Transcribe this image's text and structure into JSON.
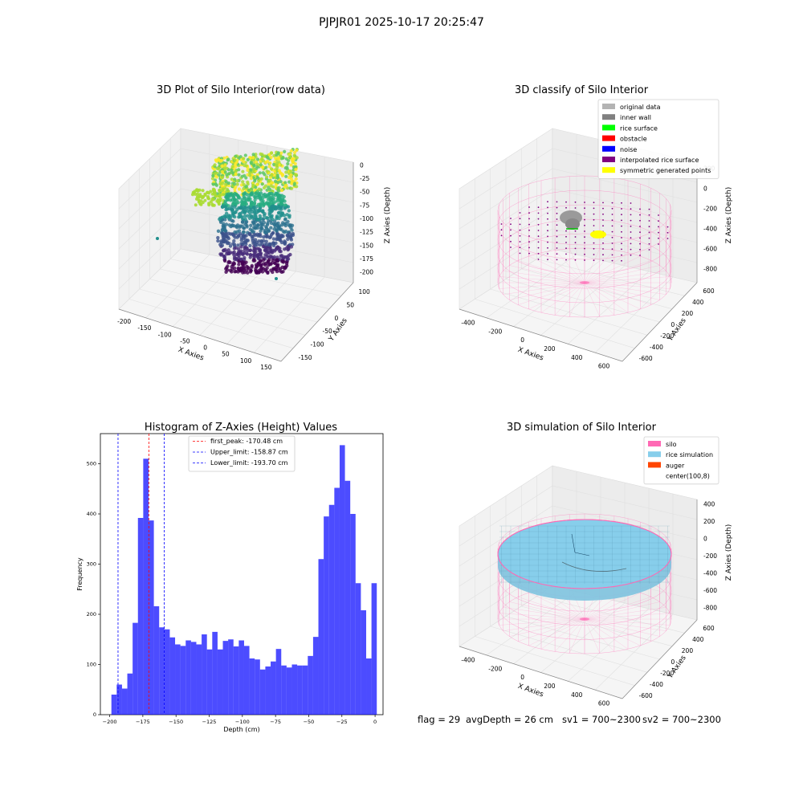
{
  "suptitle": "PJPJR01 2025-10-17 20:25:47",
  "panels": {
    "raw": {
      "title": "3D Plot of Silo Interior(row data)",
      "xlabel": "X Axies",
      "ylabel": "Y Axies",
      "zlabel": "Z Axies (Depth)",
      "xticks": [
        "-200",
        "-150",
        "-100",
        "-50",
        "0",
        "50",
        "100",
        "150"
      ],
      "yticks": [
        "100",
        "50",
        "0",
        "-50",
        "-100",
        "-150"
      ],
      "zticks": [
        "0",
        "-25",
        "-50",
        "-75",
        "-100",
        "-125",
        "-150",
        "-175",
        "-200"
      ]
    },
    "classify": {
      "title": "3D classify of Silo Interior",
      "xlabel": "X Axies",
      "ylabel": "Y Axies",
      "zlabel": "Z Axies (Depth)",
      "xticks": [
        "-400",
        "-200",
        "0",
        "200",
        "400",
        "600"
      ],
      "yticks": [
        "600",
        "400",
        "200",
        "0",
        "-200",
        "-400",
        "-600"
      ],
      "zticks": [
        "200",
        "0",
        "-200",
        "-400",
        "-600",
        "-800"
      ],
      "legend": [
        {
          "label": "original data",
          "color": "#b3b3b3"
        },
        {
          "label": "inner wall",
          "color": "#808080"
        },
        {
          "label": "rice surface",
          "color": "#00ff00"
        },
        {
          "label": "obstacle",
          "color": "#ff0000"
        },
        {
          "label": "noise",
          "color": "#0000ff"
        },
        {
          "label": "interpolated rice surface",
          "color": "#800080"
        },
        {
          "label": "symmetric generated points",
          "color": "#ffff00"
        }
      ]
    },
    "simulation": {
      "title": "3D simulation of Silo Interior",
      "xlabel": "X Axies",
      "ylabel": "Y Axies",
      "zlabel": "Z Axies (Depth)",
      "xticks": [
        "-400",
        "-200",
        "0",
        "200",
        "400",
        "600"
      ],
      "yticks": [
        "600",
        "400",
        "200",
        "0",
        "-200",
        "-400",
        "-600"
      ],
      "zticks": [
        "400",
        "200",
        "0",
        "-200",
        "-400",
        "-600",
        "-800"
      ],
      "legend": [
        {
          "label": "silo",
          "color": "#ff69b4"
        },
        {
          "label": "rice simulation",
          "color": "#87ceeb"
        },
        {
          "label": "auger",
          "color": "#ff4500"
        },
        {
          "label": "center(100,8)",
          "color": "#ffffff"
        }
      ]
    }
  },
  "status": {
    "flag": "flag = 29",
    "avg_depth": "avgDepth = 26 cm",
    "sv1": "sv1 = 700~2300",
    "sv2": "sv2 = 700~2300"
  },
  "chart_data": [
    {
      "type": "bar",
      "title": "Histogram of Z-Axies (Height) Values",
      "xlabel": "Depth (cm)",
      "ylabel": "Frequency",
      "xlim": [
        -207,
        6
      ],
      "ylim": [
        0,
        560
      ],
      "xticks": [
        -200,
        -175,
        -150,
        -125,
        -100,
        -75,
        -50,
        -25,
        0
      ],
      "yticks": [
        0,
        100,
        200,
        300,
        400,
        500
      ],
      "bar_color": "#0000ff",
      "bin_edges": [
        -198.7,
        -194.7,
        -190.7,
        -186.7,
        -182.7,
        -178.7,
        -174.7,
        -170.7,
        -166.7,
        -162.7,
        -158.7,
        -154.7,
        -150.7,
        -146.7,
        -142.7,
        -138.7,
        -134.7,
        -130.7,
        -126.7,
        -122.7,
        -118.7,
        -114.7,
        -110.7,
        -106.7,
        -102.7,
        -98.7,
        -94.7,
        -90.7,
        -86.7,
        -82.7,
        -78.7,
        -74.7,
        -70.7,
        -66.7,
        -62.7,
        -58.7,
        -54.7,
        -50.7,
        -46.7,
        -42.7,
        -38.7,
        -34.7,
        -30.7,
        -26.7,
        -22.7,
        -18.7,
        -14.7,
        -10.7,
        -6.7,
        -2.7,
        1.3
      ],
      "values": [
        40,
        60,
        52,
        82,
        183,
        392,
        510,
        387,
        216,
        174,
        170,
        154,
        140,
        137,
        148,
        145,
        140,
        160,
        130,
        165,
        130,
        147,
        150,
        136,
        148,
        137,
        112,
        110,
        90,
        96,
        106,
        131,
        98,
        94,
        100,
        98,
        98,
        117,
        155,
        310,
        395,
        418,
        452,
        537,
        466,
        400,
        262,
        208,
        112,
        262
      ],
      "lines": [
        {
          "label": "first_peak: -170.48 cm",
          "x": -170.48,
          "color": "#ff0000"
        },
        {
          "label": "Upper_limit: -158.87 cm",
          "x": -158.87,
          "color": "#0000ff"
        },
        {
          "label": "Lower_limit: -193.70 cm",
          "x": -193.7,
          "color": "#0000ff"
        }
      ],
      "legend_position": "top-center"
    }
  ]
}
